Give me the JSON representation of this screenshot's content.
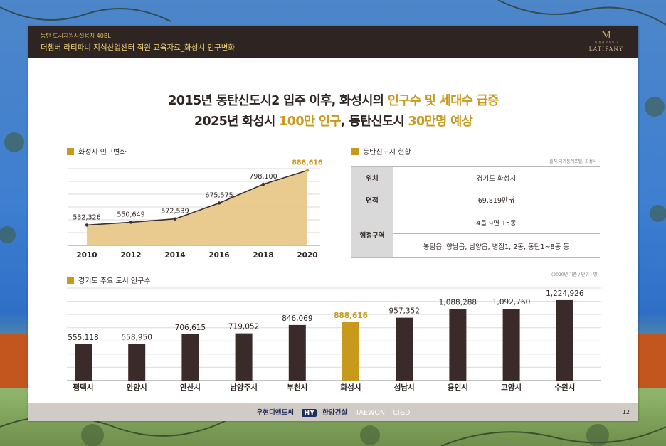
{
  "header": {
    "subtitle": "동탄 도시지원시설용지 40BL",
    "title": "더챔버 라티파니 지식산업센터 직원 교육자료_화성시 인구변화",
    "brand_name": "LATIPANY",
    "brand_small": "더 챔버 라티파니"
  },
  "headline": {
    "line1_prefix": "2015년 동탄신도시2 입주 이후, 화성시의 ",
    "line1_highlight": "인구수 및 세대수 급증",
    "line2_prefix": "2025년 화성시 ",
    "line2_highlight1": "100만 인구",
    "line2_mid": ", 동탄신도시 ",
    "line2_highlight2": "30만명 예상"
  },
  "sections": {
    "population_change_title": "화성시 인구변화",
    "dongtan_status_title": "동탄신도시 현황",
    "dongtan_source": "출처:국가통계포털, 화성시",
    "city_population_title": "경기도 주요 도시 인구수",
    "city_population_note": "(2020년 기준 / 단위 : 명)"
  },
  "chart_data": [
    {
      "type": "area",
      "title": "화성시 인구변화",
      "x": [
        "2010",
        "2012",
        "2014",
        "2016",
        "2018",
        "2020"
      ],
      "values": [
        532326,
        550649,
        572539,
        675575,
        798100,
        888616
      ],
      "labels": [
        "532,326",
        "550,649",
        "572,539",
        "675,575",
        "798,100",
        "888,616"
      ],
      "highlight_index": 5,
      "ylim": [
        400000,
        900000
      ],
      "grid": true,
      "colors": {
        "fill": "#e8c88a",
        "line": "#3a2f2d",
        "highlight": "#c79a1e"
      }
    },
    {
      "type": "bar",
      "title": "경기도 주요 도시 인구수",
      "categories": [
        "평택시",
        "안양시",
        "안산시",
        "남양주시",
        "부천시",
        "화성시",
        "성남시",
        "용인시",
        "고양시",
        "수원시"
      ],
      "values": [
        555118,
        558950,
        706615,
        719052,
        846069,
        888616,
        957352,
        1088288,
        1092760,
        1224926
      ],
      "labels": [
        "555,118",
        "558,950",
        "706,615",
        "719,052",
        "846,069",
        "888,616",
        "957,352",
        "1,088,288",
        "1,092,760",
        "1,224,926"
      ],
      "highlight_index": 5,
      "ylim": [
        0,
        1300000
      ],
      "grid": true,
      "colors": {
        "bar": "#3a2a2a",
        "highlight": "#c79a1e"
      }
    }
  ],
  "dongtan_table": {
    "location_label": "위치",
    "location_value": "경기도 화성시",
    "area_label": "면적",
    "area_value": "69,819만㎡",
    "admin_label": "행정구역",
    "admin_value1": "4읍 9면 15동",
    "admin_value2": "봉담읍, 향남읍, 남양읍, 병점1, 2동, 동탄1~8동 등"
  },
  "footer": {
    "logo1": "우현디앤드씨",
    "logo2_badge": "HY",
    "logo2": "한양건설",
    "logo3": "TAEWON",
    "logo4": "CI&D",
    "page_number": "12"
  }
}
